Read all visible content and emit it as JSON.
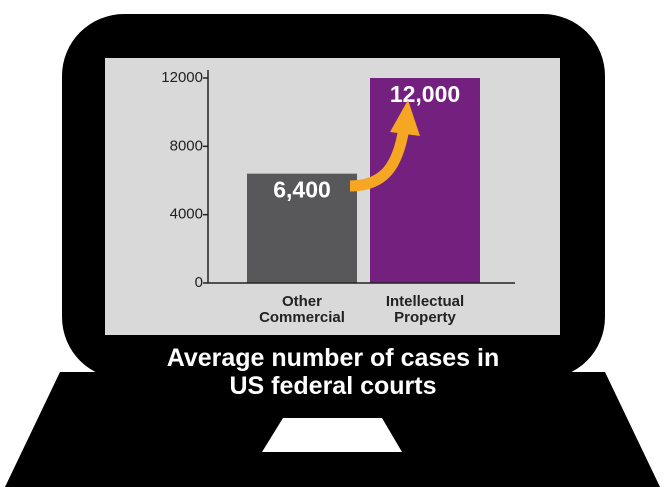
{
  "chart_data": {
    "type": "bar",
    "title": "Average number of cases in US federal courts",
    "categories": [
      "Other Commercial",
      "Intellectual Property"
    ],
    "values": [
      6400,
      12000
    ],
    "value_labels": [
      "6,400",
      "12,000"
    ],
    "colors": [
      "#58585a",
      "#74207f"
    ],
    "ylim": [
      0,
      12000
    ],
    "yticks": [
      0,
      4000,
      8000,
      12000
    ]
  }
}
